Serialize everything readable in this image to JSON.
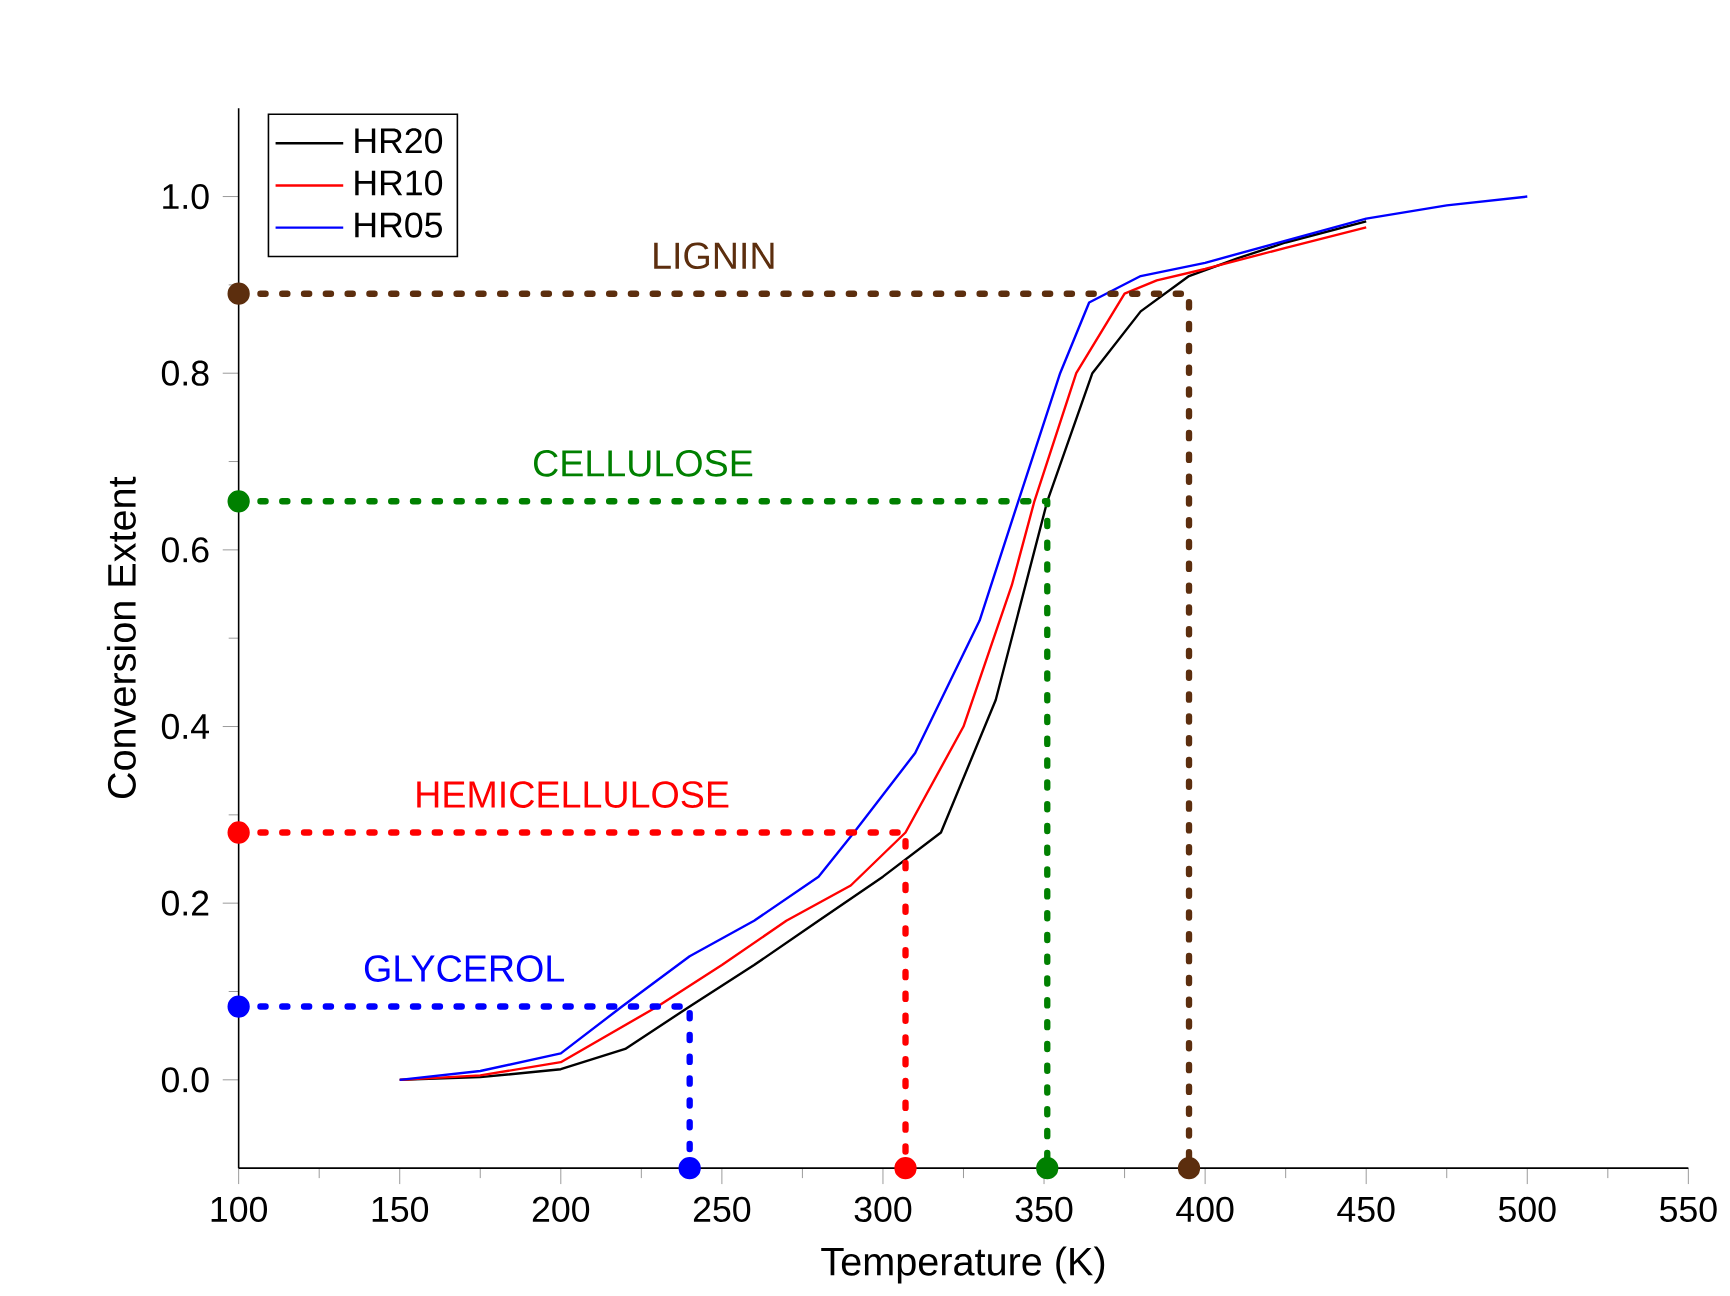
{
  "chart_data": {
    "type": "line",
    "xlabel": "Temperature (K)",
    "ylabel": "Conversion Extent",
    "xlim": [
      100,
      550
    ],
    "xticks": [
      100,
      150,
      200,
      250,
      300,
      350,
      400,
      450,
      500,
      550
    ],
    "ylim": [
      -0.1,
      1.1
    ],
    "yticks": [
      {
        "value": 0,
        "label": "0.0"
      },
      0.2,
      0.4,
      0.6,
      0.8,
      {
        "value": 1,
        "label": "1.0"
      }
    ],
    "legend": "top left",
    "grid": false,
    "series": [
      {
        "name": "HR20",
        "color": "#000000",
        "x": [
          150,
          175,
          200,
          220,
          240,
          260,
          280,
          300,
          318,
          335,
          351,
          365,
          380,
          395,
          410,
          425,
          450
        ],
        "values": [
          0,
          0.003,
          0.012,
          0.035,
          0.083,
          0.13,
          0.18,
          0.23,
          0.28,
          0.43,
          0.655,
          0.8,
          0.87,
          0.91,
          0.93,
          0.948,
          0.972
        ]
      },
      {
        "name": "HR10",
        "color": "#ff0000",
        "x": [
          150,
          175,
          200,
          230,
          250,
          270,
          290,
          307,
          325,
          340,
          347,
          360,
          375,
          385,
          400,
          425,
          450
        ],
        "values": [
          0,
          0.005,
          0.02,
          0.083,
          0.13,
          0.18,
          0.22,
          0.28,
          0.4,
          0.56,
          0.655,
          0.8,
          0.89,
          0.905,
          0.918,
          0.942,
          0.965
        ]
      },
      {
        "name": "HR05",
        "color": "#0000ff",
        "x": [
          150,
          175,
          200,
          219,
          240,
          260,
          280,
          291,
          310,
          330,
          342,
          355,
          364,
          380,
          400,
          425,
          450,
          475,
          500
        ],
        "values": [
          0,
          0.01,
          0.03,
          0.083,
          0.14,
          0.18,
          0.23,
          0.28,
          0.37,
          0.52,
          0.655,
          0.8,
          0.88,
          0.91,
          0.925,
          0.95,
          0.975,
          0.99,
          1.0
        ]
      },
      {
        "type": "line",
        "line_style": "dotted",
        "marker": "none",
        "color": "#0000ff",
        "x": [
          100,
          240,
          240
        ],
        "values": [
          0.083,
          0.083,
          -0.1
        ]
      },
      {
        "type": "line",
        "line_style": "dotted",
        "marker": "none",
        "color": "#ff0000",
        "x": [
          100,
          307,
          307
        ],
        "values": [
          0.28,
          0.28,
          -0.1
        ]
      },
      {
        "type": "line",
        "line_style": "dotted",
        "marker": "none",
        "color": "#008000",
        "x": [
          100,
          351,
          351
        ],
        "values": [
          0.655,
          0.655,
          -0.1
        ]
      },
      {
        "type": "line",
        "line_style": "dotted",
        "marker": "none",
        "color": "#5c2e0e",
        "x": [
          100,
          395,
          395
        ],
        "values": [
          0.89,
          0.89,
          -0.1
        ]
      },
      {
        "type": "scatter",
        "marker": "circle",
        "color": "#0000ff",
        "x": [
          100,
          240
        ],
        "values": [
          0.083,
          -0.1
        ]
      },
      {
        "type": "scatter",
        "marker": "circle",
        "color": "#ff0000",
        "x": [
          100,
          307
        ],
        "values": [
          0.28,
          -0.1
        ]
      },
      {
        "type": "scatter",
        "marker": "circle",
        "color": "#008000",
        "x": [
          100,
          351
        ],
        "values": [
          0.655,
          -0.1
        ]
      },
      {
        "type": "scatter",
        "marker": "circle",
        "color": "#5c2e0e",
        "x": [
          100,
          395
        ],
        "values": [
          0.89,
          -0.1
        ]
      }
    ],
    "annotations": [
      "GLYCEROL",
      "HEMICELLULOSE",
      "CELLULOSE",
      "LIGNIN"
    ]
  }
}
